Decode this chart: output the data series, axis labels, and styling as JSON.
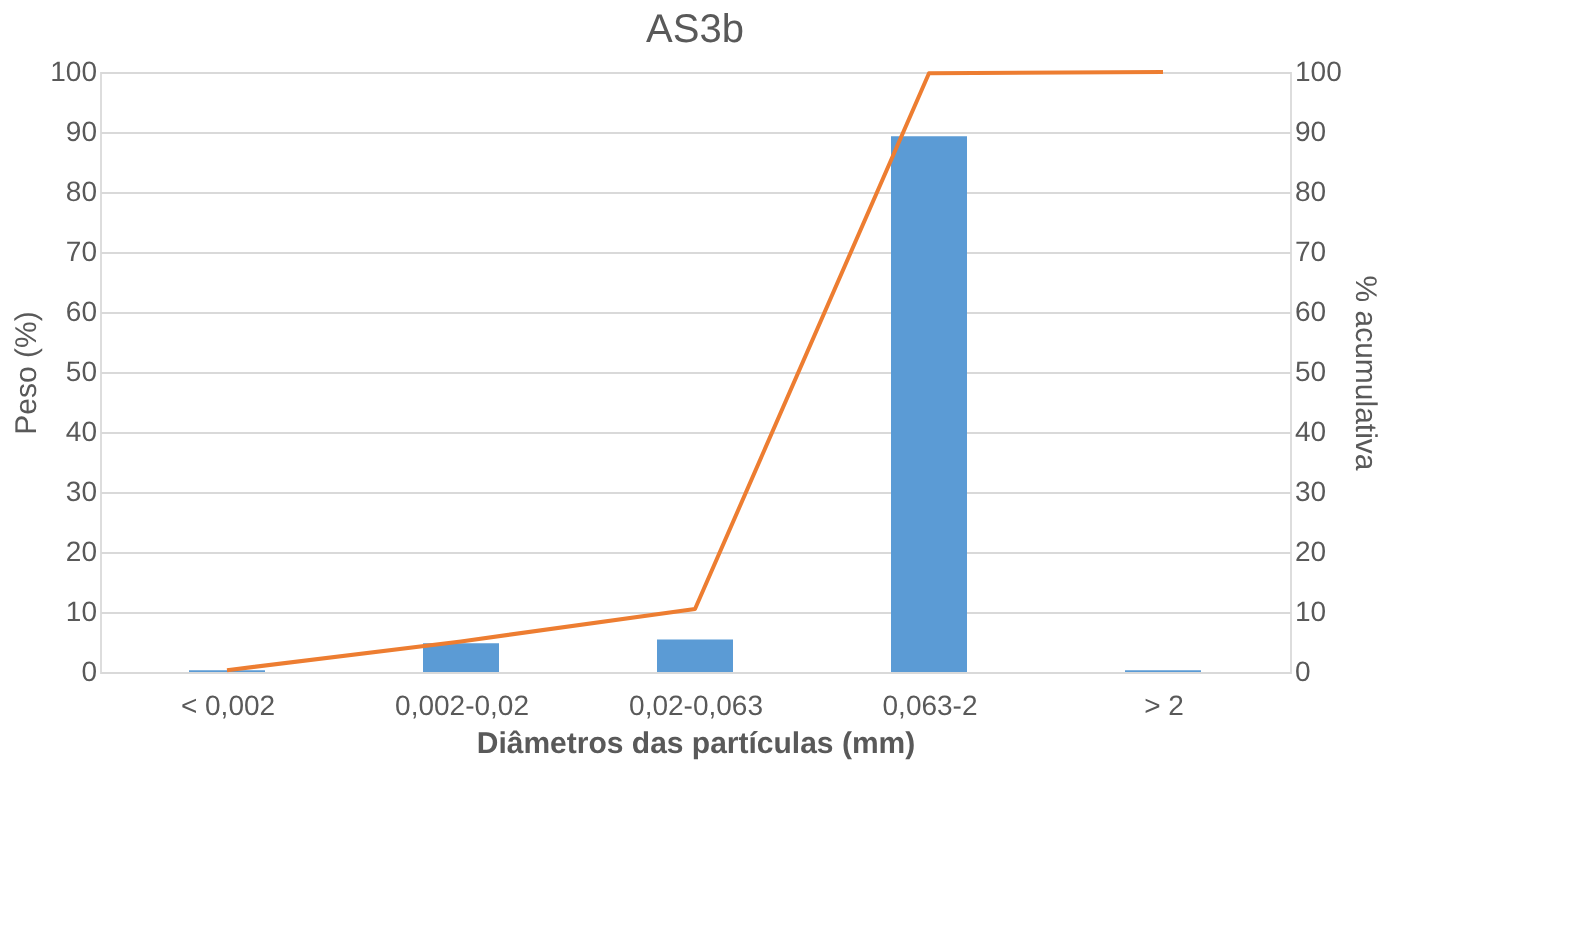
{
  "chart_data": {
    "type": "bar",
    "title": "AS3b",
    "xlabel": "Diâmetros das partículas (mm)",
    "ylabel": "Peso (%)",
    "y2label": "% acumulativa",
    "categories": [
      "< 0,002",
      "0,002-0,02",
      "0,02-0,063",
      "0,063-2",
      "> 2"
    ],
    "series": [
      {
        "color": "#5b9bd5",
        "values": [
          0.3,
          4.8,
          5.4,
          89.3,
          0.3
        ]
      },
      {
        "type": "line",
        "axis": "y2",
        "color": "#ed7d31",
        "values": [
          0.3,
          5.1,
          10.5,
          99.8,
          100
        ],
        "marker": "none"
      }
    ],
    "ylim": [
      0,
      100
    ],
    "yticks": [
      0,
      10,
      20,
      30,
      40,
      50,
      60,
      70,
      80,
      90,
      100
    ],
    "y2lim": [
      0,
      100
    ],
    "y2ticks": [
      0,
      10,
      20,
      30,
      40,
      50,
      60,
      70,
      80,
      90,
      100
    ],
    "grid": "y"
  }
}
